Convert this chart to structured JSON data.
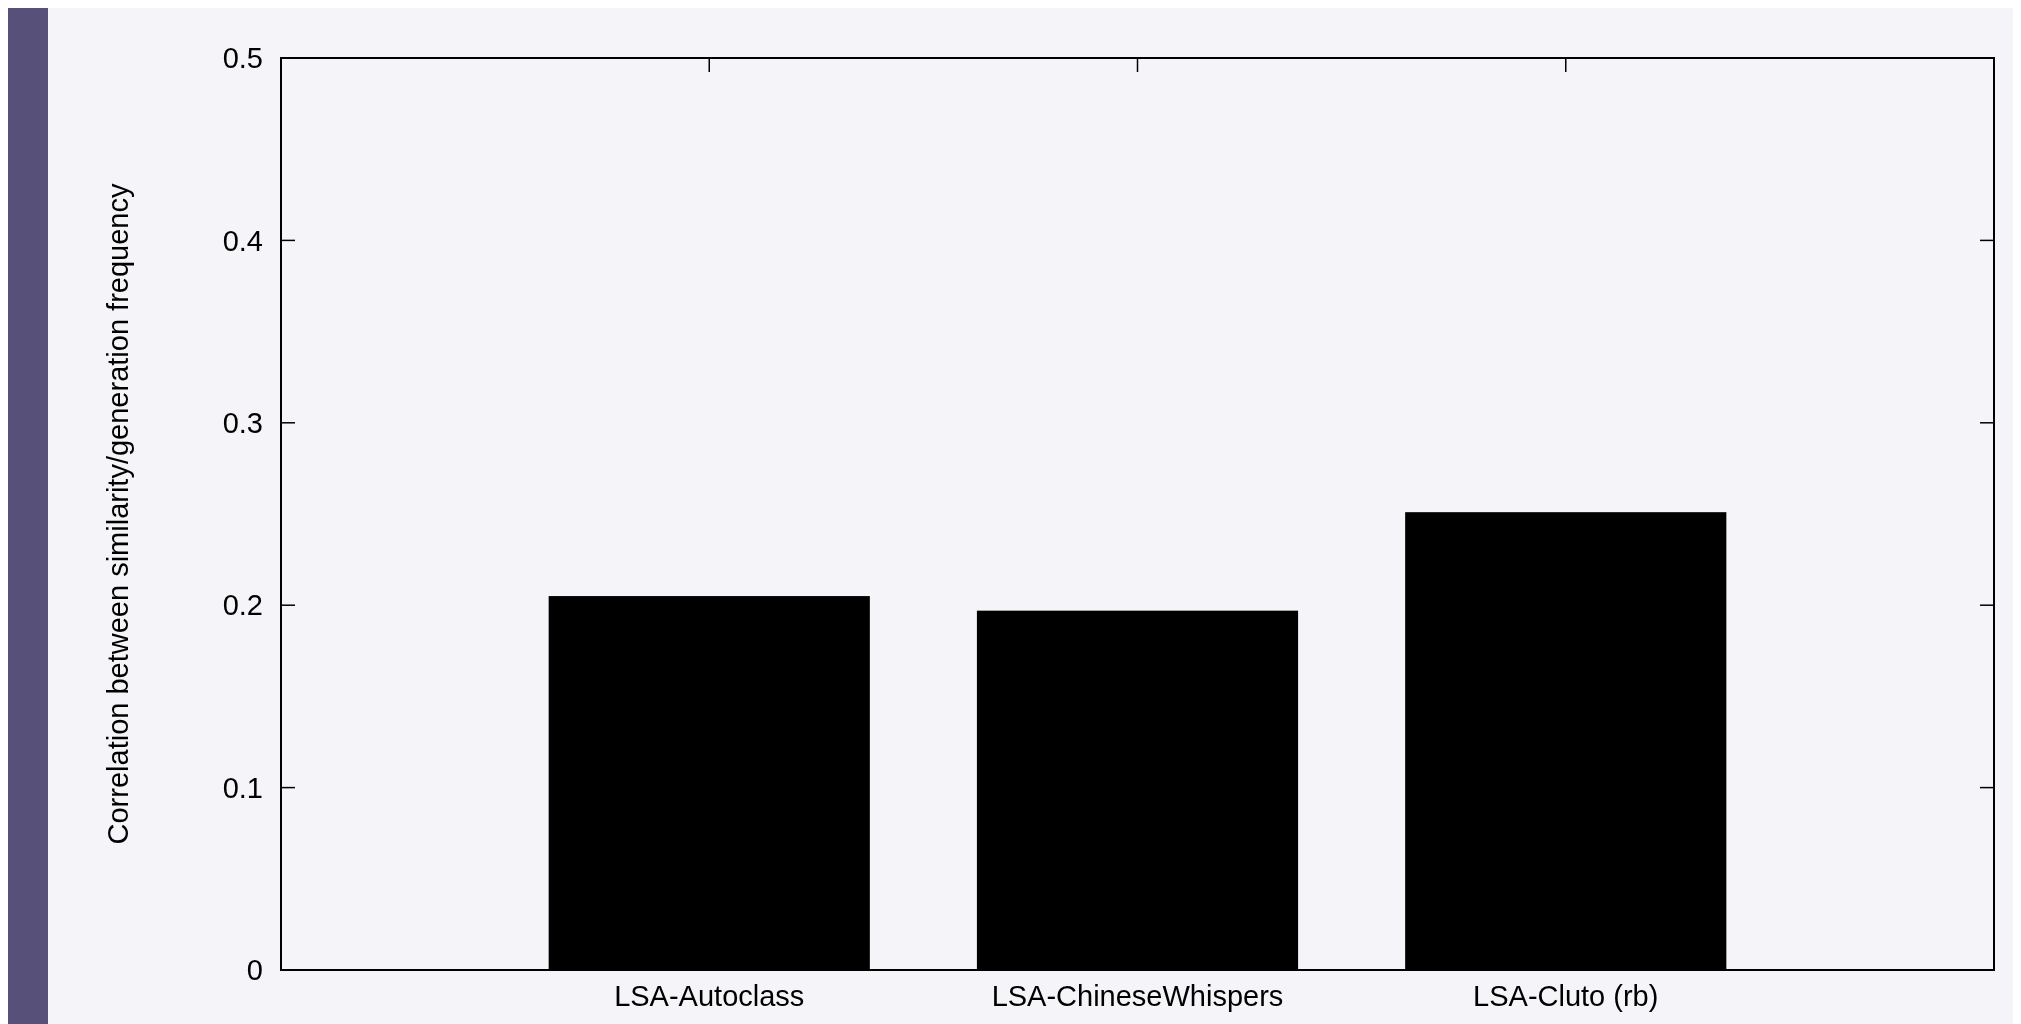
{
  "chart_data": {
    "type": "bar",
    "ylabel": "Correlation between similarity/generation frequency",
    "categories": [
      "LSA-Autoclass",
      "LSA-ChineseWhispers",
      "LSA-Cluto (rb)"
    ],
    "values": [
      0.205,
      0.197,
      0.251
    ],
    "color": "#000000",
    "ylim": [
      0,
      0.5
    ],
    "yticks": [
      0,
      0.1,
      0.2,
      0.3,
      0.4,
      0.5
    ],
    "grid": false
  }
}
